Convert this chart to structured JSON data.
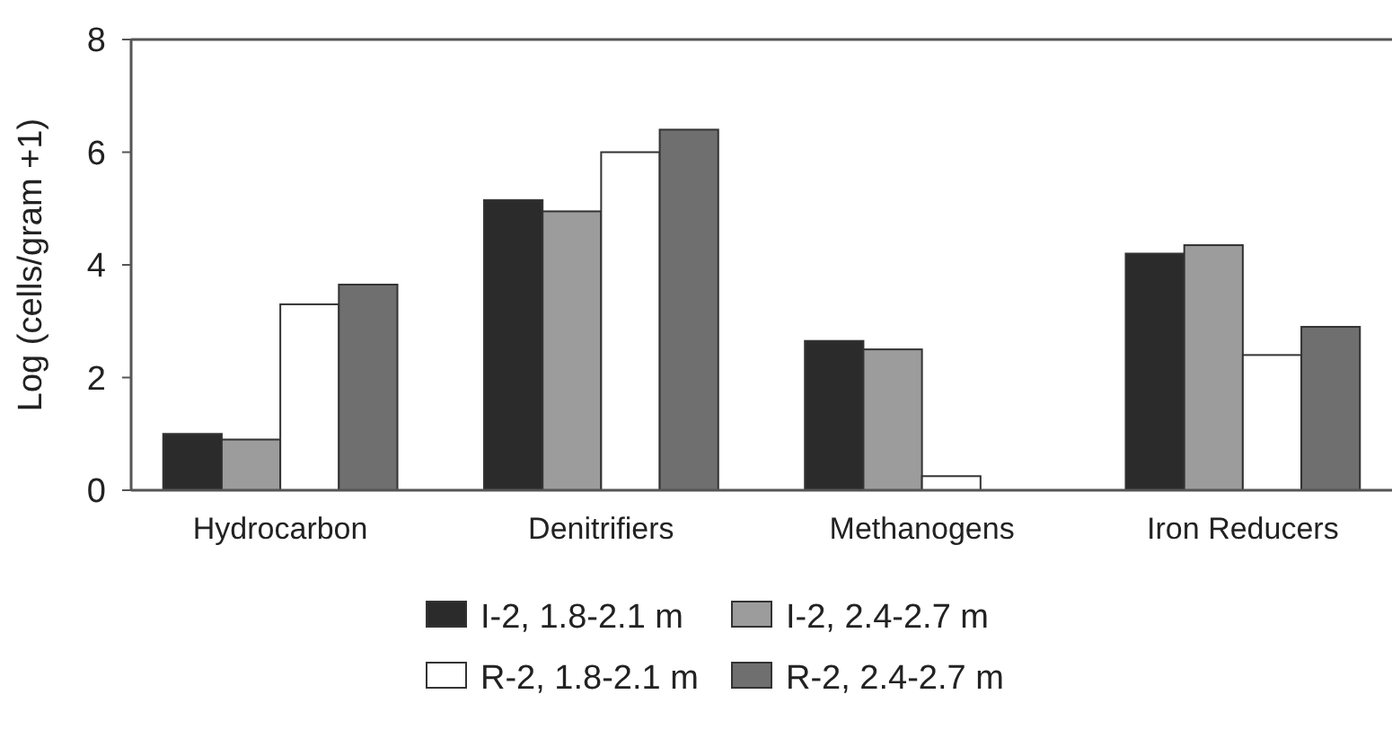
{
  "chart_data": {
    "type": "bar",
    "ylabel": "Log (cells/gram +1)",
    "categories": [
      "Hydrocarbon",
      "Denitrifiers",
      "Methanogens",
      "Iron Reducers"
    ],
    "series": [
      {
        "name": "I-2, 1.8-2.1 m",
        "color": "#2b2b2b",
        "values": [
          1.0,
          5.15,
          2.65,
          4.2
        ]
      },
      {
        "name": "I-2, 2.4-2.7 m",
        "color": "#9c9c9c",
        "values": [
          0.9,
          4.95,
          2.5,
          4.35
        ]
      },
      {
        "name": "R-2, 1.8-2.1 m",
        "color": "#ffffff",
        "values": [
          3.3,
          6.0,
          0.25,
          2.4
        ]
      },
      {
        "name": "R-2, 2.4-2.7 m",
        "color": "#6f6f6f",
        "values": [
          3.65,
          6.4,
          0,
          2.9
        ]
      }
    ],
    "ylim": [
      0,
      8
    ],
    "yticks": [
      0,
      2,
      4,
      6,
      8
    ],
    "grid": false,
    "legend": "bottom"
  }
}
